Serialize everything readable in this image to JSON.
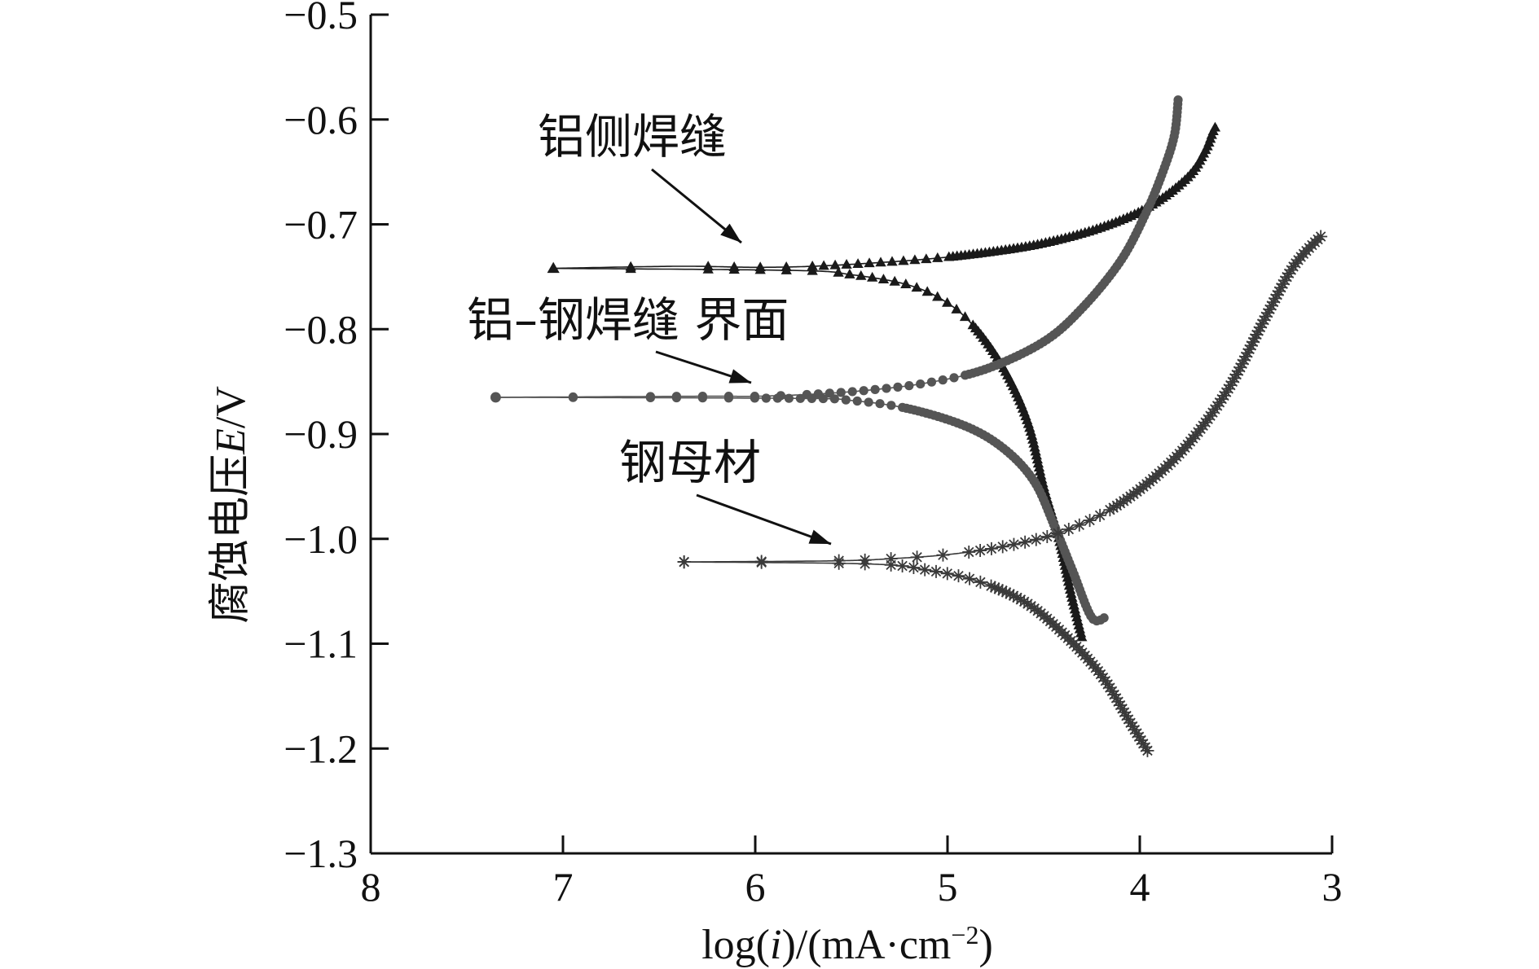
{
  "chart_data": {
    "type": "line",
    "xlabel": {
      "prefix": "log(",
      "italic": "i",
      "suffix": ")/(mA·cm",
      "sup": "−2",
      "close": ")"
    },
    "ylabel": {
      "prefix": "腐蚀电压",
      "italic": "E",
      "suffix": "/V"
    },
    "x_axis": {
      "reversed": true,
      "range": [
        8,
        3
      ],
      "ticks": [
        8,
        7,
        6,
        5,
        4,
        3
      ],
      "tick_labels": [
        "8",
        "7",
        "6",
        "5",
        "4",
        "3"
      ]
    },
    "y_axis": {
      "range": [
        -1.3,
        -0.5
      ],
      "ticks": [
        -0.5,
        -0.6,
        -0.7,
        -0.8,
        -0.9,
        -1.0,
        -1.1,
        -1.2,
        -1.3
      ],
      "tick_labels": [
        "−0.5",
        "−0.6",
        "−0.7",
        "−0.8",
        "−0.9",
        "−1.0",
        "−1.1",
        "−1.2",
        "−1.3"
      ]
    },
    "grid": false,
    "legend": "none",
    "annotations": [
      {
        "text": "铝侧焊缝",
        "arrow_to": [
          6.08,
          -0.742
        ]
      },
      {
        "text": "铝–钢焊缝  界面",
        "arrow_to": [
          5.98,
          -0.855
        ]
      },
      {
        "text": "钢母材",
        "arrow_to": [
          5.62,
          -1.005
        ]
      }
    ],
    "series": [
      {
        "marker": "triangle",
        "color": "#1a1a1a",
        "ecorr": -0.742,
        "start_x": 7.05,
        "anodic": [
          [
            6.4,
            -0.74
          ],
          [
            6.0,
            -0.741
          ],
          [
            5.7,
            -0.74
          ],
          [
            5.4,
            -0.737
          ],
          [
            5.1,
            -0.733
          ],
          [
            4.8,
            -0.727
          ],
          [
            4.5,
            -0.718
          ],
          [
            4.2,
            -0.703
          ],
          [
            3.95,
            -0.683
          ],
          [
            3.75,
            -0.655
          ],
          [
            3.66,
            -0.63
          ],
          [
            3.62,
            -0.612
          ],
          [
            3.6,
            -0.605
          ]
        ],
        "cathodic": [
          [
            5.8,
            -0.744
          ],
          [
            5.5,
            -0.748
          ],
          [
            5.2,
            -0.758
          ],
          [
            5.0,
            -0.775
          ],
          [
            4.85,
            -0.8
          ],
          [
            4.7,
            -0.84
          ],
          [
            4.58,
            -0.89
          ],
          [
            4.5,
            -0.95
          ],
          [
            4.42,
            -1.0
          ],
          [
            4.36,
            -1.05
          ],
          [
            4.3,
            -1.095
          ]
        ]
      },
      {
        "marker": "circle",
        "color": "#555555",
        "ecorr": -0.865,
        "start_x": 7.35,
        "anodic": [
          [
            6.3,
            -0.864
          ],
          [
            6.0,
            -0.864
          ],
          [
            5.7,
            -0.862
          ],
          [
            5.4,
            -0.858
          ],
          [
            5.1,
            -0.851
          ],
          [
            4.8,
            -0.838
          ],
          [
            4.5,
            -0.812
          ],
          [
            4.3,
            -0.78
          ],
          [
            4.1,
            -0.735
          ],
          [
            3.97,
            -0.69
          ],
          [
            3.88,
            -0.65
          ],
          [
            3.82,
            -0.615
          ],
          [
            3.8,
            -0.58
          ]
        ],
        "cathodic": [
          [
            5.8,
            -0.866
          ],
          [
            5.5,
            -0.868
          ],
          [
            5.2,
            -0.876
          ],
          [
            4.9,
            -0.893
          ],
          [
            4.7,
            -0.915
          ],
          [
            4.55,
            -0.945
          ],
          [
            4.45,
            -0.985
          ],
          [
            4.35,
            -1.03
          ],
          [
            4.25,
            -1.075
          ],
          [
            4.18,
            -1.075
          ]
        ]
      },
      {
        "marker": "star",
        "color": "#3a3a3a",
        "ecorr": -1.022,
        "start_x": 6.37,
        "anodic": [
          [
            5.6,
            -1.021
          ],
          [
            5.3,
            -1.019
          ],
          [
            5.0,
            -1.015
          ],
          [
            4.7,
            -1.007
          ],
          [
            4.4,
            -0.993
          ],
          [
            4.1,
            -0.966
          ],
          [
            3.8,
            -0.92
          ],
          [
            3.55,
            -0.86
          ],
          [
            3.35,
            -0.79
          ],
          [
            3.2,
            -0.74
          ],
          [
            3.05,
            -0.71
          ]
        ],
        "cathodic": [
          [
            5.4,
            -1.024
          ],
          [
            5.1,
            -1.03
          ],
          [
            4.85,
            -1.04
          ],
          [
            4.6,
            -1.06
          ],
          [
            4.4,
            -1.09
          ],
          [
            4.2,
            -1.13
          ],
          [
            4.05,
            -1.175
          ],
          [
            3.95,
            -1.205
          ]
        ]
      }
    ]
  }
}
